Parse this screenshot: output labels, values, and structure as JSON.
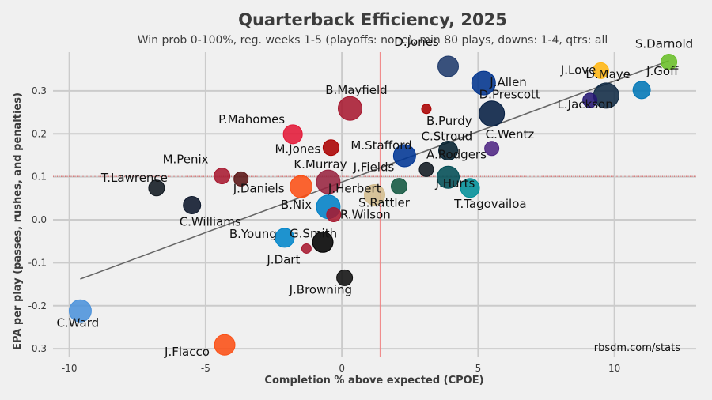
{
  "chart_data": {
    "type": "scatter",
    "title": "Quarterback Efficiency, 2025",
    "subtitle": "Win prob 0-100%, reg. weeks 1-5 (playoffs: none), min 80 plays, downs: 1-4, qtrs: all",
    "xlabel": "Completion % above expected (CPOE)",
    "ylabel": "EPA per play (passes, rushes, and penalties)",
    "credit": "rbsdm.com/stats",
    "xlim": [
      -10.6,
      13.0
    ],
    "ylim": [
      -0.32,
      0.39
    ],
    "xticks": [
      -10,
      -5,
      0,
      5,
      10
    ],
    "yticks": [
      -0.3,
      -0.2,
      -0.1,
      0.0,
      0.1,
      0.2,
      0.3
    ],
    "ytick_labels": [
      "-0.3",
      "-0.2",
      "-0.1",
      "0.0",
      "0.1",
      "0.2",
      "0.3"
    ],
    "mean_x": 1.4,
    "mean_y": 0.101,
    "trendline": {
      "x": [
        -9.6,
        12.0
      ],
      "y": [
        -0.138,
        0.37
      ]
    },
    "points": [
      {
        "name": "D.Jones",
        "x": 3.9,
        "y": 0.357,
        "size": 13,
        "color": "#1f3a6b"
      },
      {
        "name": "S.Darnold",
        "x": 12.0,
        "y": 0.367,
        "size": 10,
        "color": "#69be28"
      },
      {
        "name": "J.Love",
        "x": 9.5,
        "y": 0.347,
        "size": 10,
        "color": "#ffb612"
      },
      {
        "name": "J.Allen",
        "x": 5.2,
        "y": 0.318,
        "size": 15,
        "color": "#00338d"
      },
      {
        "name": "D.Maye",
        "x": 9.7,
        "y": 0.289,
        "size": 16,
        "color": "#102a44"
      },
      {
        "name": "J.Goff",
        "x": 11.0,
        "y": 0.302,
        "size": 11,
        "color": "#0076b6"
      },
      {
        "name": "L.Jackson",
        "x": 9.1,
        "y": 0.278,
        "size": 9,
        "color": "#241773"
      },
      {
        "name": "B.Mayfield",
        "x": 0.3,
        "y": 0.259,
        "size": 15,
        "color": "#a71930"
      },
      {
        "name": "D.Prescott",
        "x": 5.5,
        "y": 0.247,
        "size": 16,
        "color": "#041e42"
      },
      {
        "name": "B.Purdy",
        "x": 3.1,
        "y": 0.258,
        "size": 6,
        "color": "#aa0000"
      },
      {
        "name": "P.Mahomes",
        "x": -1.8,
        "y": 0.199,
        "size": 12,
        "color": "#e31837"
      },
      {
        "name": "M.Jones",
        "x": -0.4,
        "y": 0.168,
        "size": 10,
        "color": "#aa0000"
      },
      {
        "name": "C.Stroud",
        "x": 3.9,
        "y": 0.161,
        "size": 12,
        "color": "#03202f"
      },
      {
        "name": "C.Wentz",
        "x": 5.5,
        "y": 0.166,
        "size": 9,
        "color": "#4f2683"
      },
      {
        "name": "M.Stafford",
        "x": 2.3,
        "y": 0.149,
        "size": 14,
        "color": "#003594"
      },
      {
        "name": "A.Rodgers",
        "x": 3.1,
        "y": 0.117,
        "size": 9,
        "color": "#101820"
      },
      {
        "name": "M.Penix",
        "x": -4.4,
        "y": 0.102,
        "size": 10,
        "color": "#a71930"
      },
      {
        "name": "J.Daniels",
        "x": -3.7,
        "y": 0.095,
        "size": 9,
        "color": "#5a1414"
      },
      {
        "name": "J.Hurts",
        "x": 3.9,
        "y": 0.099,
        "size": 14,
        "color": "#004c54"
      },
      {
        "name": "K.Murray",
        "x": -0.5,
        "y": 0.088,
        "size": 15,
        "color": "#97233f"
      },
      {
        "name": "J.Fields",
        "x": 2.1,
        "y": 0.078,
        "size": 10,
        "color": "#125740"
      },
      {
        "name": "T.Lawrence",
        "x": -6.8,
        "y": 0.074,
        "size": 10,
        "color": "#101820"
      },
      {
        "name": "T.Tagovailoa",
        "x": 4.7,
        "y": 0.074,
        "size": 12,
        "color": "#008e97"
      },
      {
        "name": "B.Nix",
        "x": -1.5,
        "y": 0.077,
        "size": 14,
        "color": "#fb4f14"
      },
      {
        "name": "S.Rattler",
        "x": 1.2,
        "y": 0.058,
        "size": 13,
        "color": "#d3bc8d"
      },
      {
        "name": "J.Herbert",
        "x": -0.5,
        "y": 0.03,
        "size": 15,
        "color": "#0080c6"
      },
      {
        "name": "C.Williams",
        "x": -5.5,
        "y": 0.034,
        "size": 11,
        "color": "#0b162a"
      },
      {
        "name": "R.Wilson",
        "x": -0.3,
        "y": 0.012,
        "size": 9,
        "color": "#a71930"
      },
      {
        "name": "B.Young",
        "x": -2.1,
        "y": -0.042,
        "size": 12,
        "color": "#0085ca"
      },
      {
        "name": "G.Smith",
        "x": -0.7,
        "y": -0.052,
        "size": 13,
        "color": "#000000"
      },
      {
        "name": "J.Dart",
        "x": -1.3,
        "y": -0.067,
        "size": 6,
        "color": "#a71930"
      },
      {
        "name": "J.Browning",
        "x": 0.1,
        "y": -0.135,
        "size": 10,
        "color": "#101010"
      },
      {
        "name": "C.Ward",
        "x": -9.6,
        "y": -0.212,
        "size": 14,
        "color": "#4b92db"
      },
      {
        "name": "J.Flacco",
        "x": -4.3,
        "y": -0.291,
        "size": 13,
        "color": "#fb4f14"
      }
    ]
  }
}
